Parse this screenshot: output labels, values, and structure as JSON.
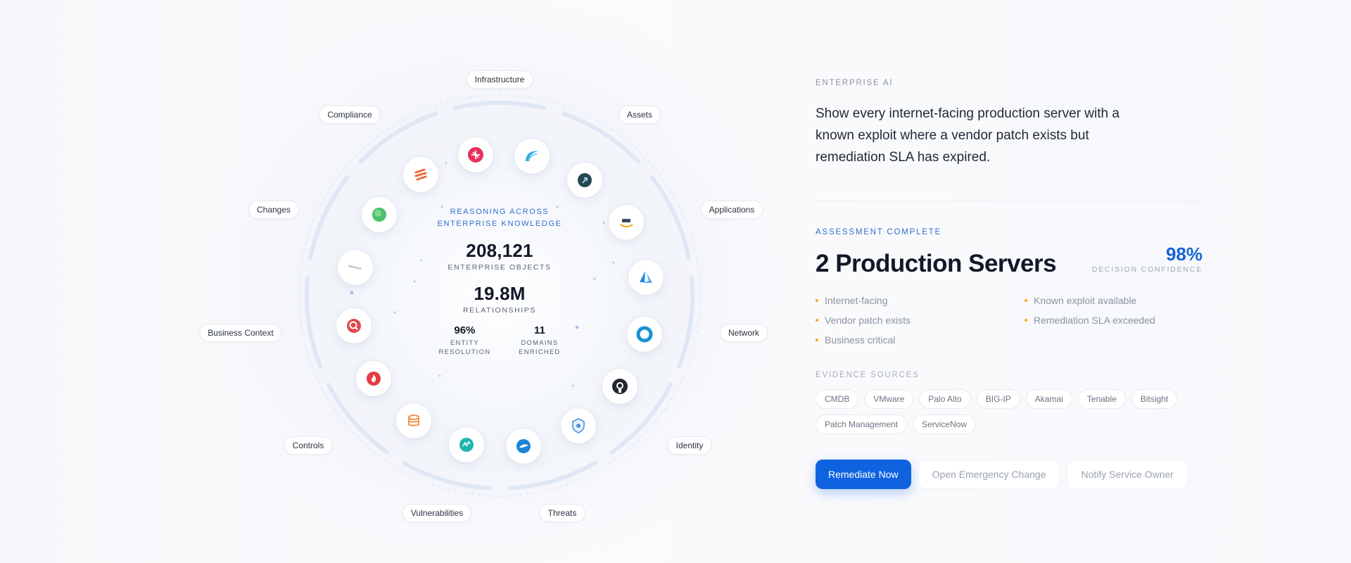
{
  "graph": {
    "center": {
      "title_line1": "REASONING ACROSS",
      "title_line2": "ENTERPRISE KNOWLEDGE",
      "objects_value": "208,121",
      "objects_label": "ENTERPRISE OBJECTS",
      "relationships_value": "19.8M",
      "relationships_label": "RELATIONSHIPS",
      "resolution_value": "96%",
      "resolution_label_1": "ENTITY",
      "resolution_label_2": "RESOLUTION",
      "domains_value": "11",
      "domains_label_1": "DOMAINS",
      "domains_label_2": "ENRICHED"
    },
    "domains": [
      "Infrastructure",
      "Assets",
      "Applications",
      "Network",
      "Identity",
      "Threats",
      "Vulnerabilities",
      "Controls",
      "Business Context",
      "Changes",
      "Compliance"
    ],
    "nodes": [
      "fortinet-icon",
      "wave-icon",
      "arrow-badge-icon",
      "amazon-icon",
      "azure-icon",
      "ring-icon",
      "github-icon",
      "shield-icon",
      "bird-icon",
      "tenable-icon",
      "database-icon",
      "flame-icon",
      "magnifier-icon",
      "wordmark-icon",
      "leaf-icon",
      "stripes-icon"
    ],
    "colors": {
      "ring": "#dfe7f5",
      "accent": "#2f6fce"
    }
  },
  "panel": {
    "eyebrow": "ENTERPRISE AI",
    "query": "Show every internet-facing production server with a known exploit where a vendor patch exists but remediation SLA has expired.",
    "status": "ASSESSMENT COMPLETE",
    "result": "2 Production Servers",
    "confidence_value": "98%",
    "confidence_label": "DECISION CONFIDENCE",
    "findings": [
      "Internet-facing",
      "Known exploit available",
      "Vendor patch exists",
      "Remediation SLA exceeded",
      "Business critical"
    ],
    "sources_label": "EVIDENCE SOURCES",
    "sources": [
      "CMDB",
      "VMware",
      "Palo Alto",
      "BIG-IP",
      "Akamai",
      "Tenable",
      "Bitsight",
      "Patch Management",
      "ServiceNow"
    ],
    "actions": {
      "primary": "Remediate Now",
      "secondary": "Open Emergency Change",
      "tertiary": "Notify Service Owner"
    },
    "colors": {
      "primary": "#1063e0",
      "bullet": "#f5a524",
      "confidence": "#1464d8"
    }
  }
}
